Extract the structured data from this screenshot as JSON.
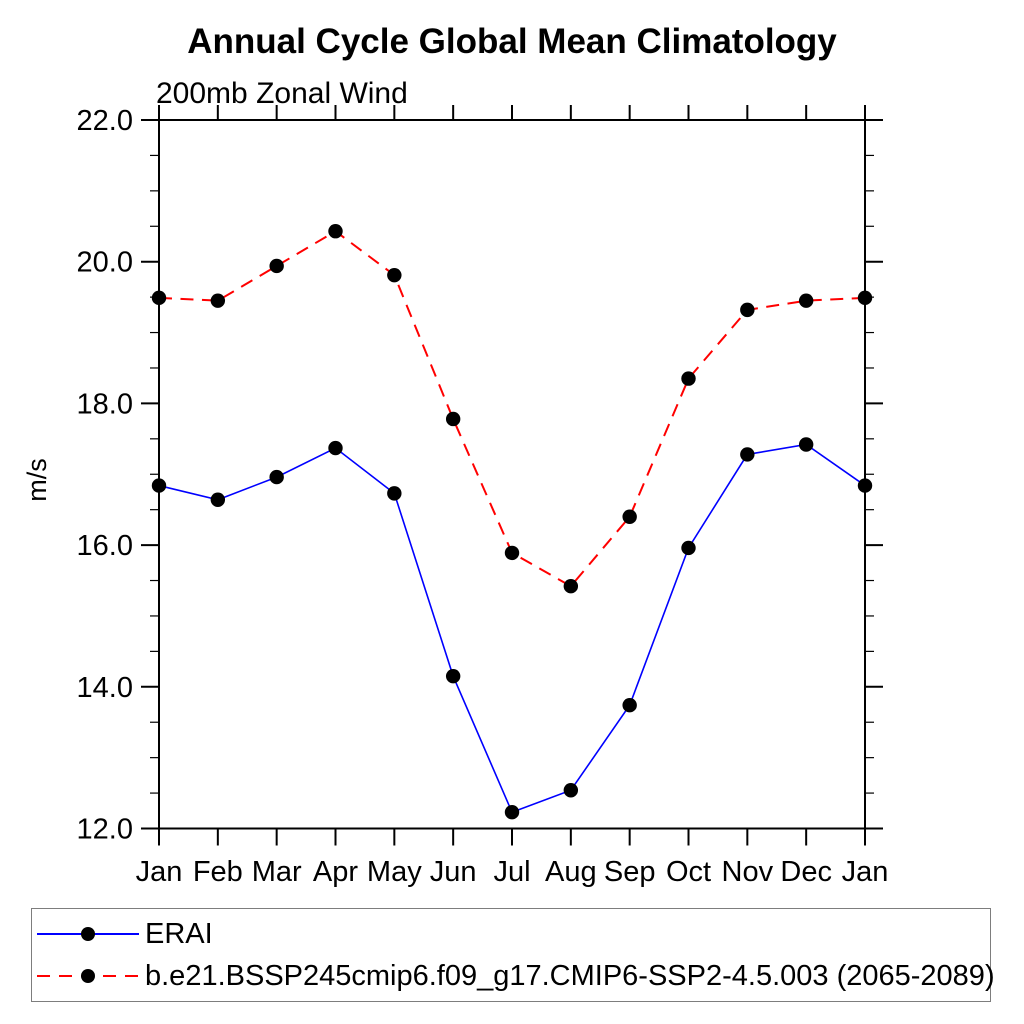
{
  "chart_data": {
    "type": "line",
    "title": "Annual Cycle Global Mean Climatology",
    "subtitle": "200mb Zonal Wind",
    "ylabel": "m/s",
    "xlabel": "",
    "x_categories": [
      "Jan",
      "Feb",
      "Mar",
      "Apr",
      "May",
      "Jun",
      "Jul",
      "Aug",
      "Sep",
      "Oct",
      "Nov",
      "Dec",
      "Jan"
    ],
    "ylim": [
      12.0,
      22.0
    ],
    "ytick_major": [
      12.0,
      14.0,
      16.0,
      18.0,
      20.0,
      22.0
    ],
    "ytick_labels": [
      "12.0",
      "14.0",
      "16.0",
      "18.0",
      "20.0",
      "22.0"
    ],
    "ytick_minor_step": 0.5,
    "grid": false,
    "legend_position": "bottom-box",
    "axis_color": "#000000",
    "series": [
      {
        "name": "ERAI",
        "color": "#0000ff",
        "style": "solid",
        "marker": "filled-circle",
        "marker_color": "#000000",
        "values": [
          16.84,
          16.64,
          16.96,
          17.37,
          16.73,
          14.15,
          12.23,
          12.54,
          13.74,
          15.96,
          17.28,
          17.42,
          16.84
        ]
      },
      {
        "name": "b.e21.BSSP245cmip6.f09_g17.CMIP6-SSP2-4.5.003 (2065-2089)",
        "color": "#ff0000",
        "style": "dashed",
        "marker": "filled-circle",
        "marker_color": "#000000",
        "values": [
          19.49,
          19.45,
          19.94,
          20.43,
          19.81,
          17.78,
          15.89,
          15.42,
          16.4,
          18.35,
          19.32,
          19.45,
          19.49
        ]
      }
    ]
  }
}
